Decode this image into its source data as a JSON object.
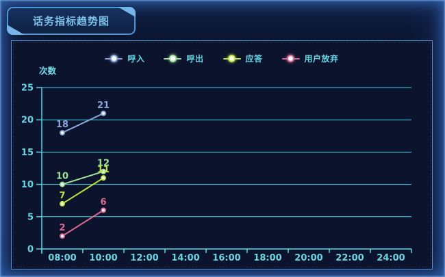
{
  "header": {
    "title": "话务指标趋势图"
  },
  "chart_data": {
    "type": "line",
    "title": "话务指标趋势图",
    "ylabel": "次数",
    "xlabel": "",
    "categories": [
      "08:00",
      "10:00",
      "12:00",
      "14:00",
      "16:00",
      "18:00",
      "20:00",
      "22:00",
      "24:00"
    ],
    "ylim": [
      0,
      25
    ],
    "yticks": [
      0,
      5,
      10,
      15,
      20,
      25
    ],
    "grid": true,
    "legend_position": "top-center",
    "marker_fill": "#ffffff",
    "series": [
      {
        "name": "呼入",
        "color": "#8aa6dc",
        "values": [
          18,
          21
        ]
      },
      {
        "name": "呼出",
        "color": "#9fe39b",
        "values": [
          10,
          12
        ]
      },
      {
        "name": "应答",
        "color": "#bfe53a",
        "values": [
          7,
          11
        ]
      },
      {
        "name": "用户放弃",
        "color": "#e0688f",
        "values": [
          2,
          6
        ]
      }
    ]
  },
  "colors": {
    "title": "#7cc0e8",
    "panel_border": "#5d92d4",
    "panel_bg": "#0b142c",
    "screen_bg": "#0c1733",
    "edge_glow": "#3468b9",
    "grid_line": "#46d2e4",
    "axis_line": "#55dbe9",
    "tick_label": "#64d7e2",
    "legend_text": "#62d9e4",
    "badge_accent": "#74b6ea"
  }
}
